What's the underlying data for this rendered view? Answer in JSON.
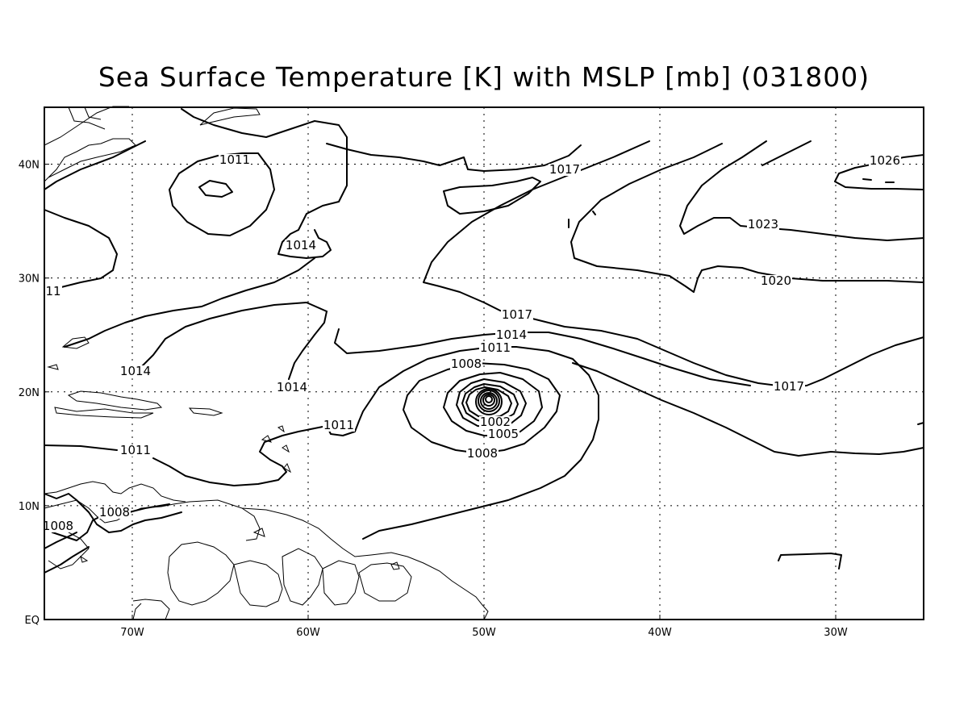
{
  "title": "Sea Surface Temperature [K] with MSLP [mb] (031800)",
  "map": {
    "lon_range": [
      -75,
      -25
    ],
    "lat_range": [
      0,
      45
    ],
    "x_ticks": [
      "70W",
      "60W",
      "50W",
      "40W",
      "30W"
    ],
    "y_ticks": [
      "EQ",
      "10N",
      "20N",
      "30N",
      "40N"
    ],
    "grid": "dotted",
    "contour_labels": [
      "1011",
      "1017",
      "1026",
      "1014",
      "1023",
      "1020",
      "11",
      "1017",
      "1014",
      "1011",
      "1008",
      "1014",
      "1014",
      "1017",
      "1011",
      "1002",
      "1005",
      "1008",
      "1011",
      "1008",
      "1008"
    ]
  }
}
